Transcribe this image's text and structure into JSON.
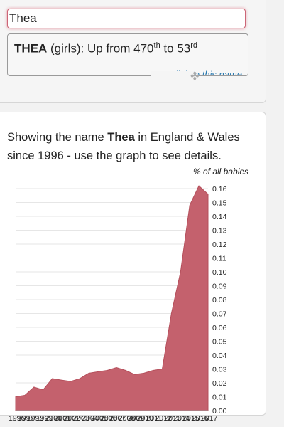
{
  "search": {
    "value": "Thea"
  },
  "result": {
    "name": "THEA",
    "gender": "(girls)",
    "phrase": ": Up from ",
    "from_rank": "470",
    "from_suffix": "th",
    "to_word": " to ",
    "to_rank": "53",
    "to_suffix": "rd",
    "copy_link": "copy link to this name"
  },
  "description": {
    "prefix": "Showing the name ",
    "name": "Thea",
    "suffix": " in England & Wales since 1996 - use the graph to see details."
  },
  "chart_data": {
    "type": "area",
    "ylabel": "% of all babies",
    "x": [
      1996,
      1997,
      1998,
      1999,
      2000,
      2001,
      2002,
      2003,
      2004,
      2005,
      2006,
      2007,
      2008,
      2009,
      2010,
      2011,
      2012,
      2013,
      2014,
      2015,
      2016,
      2017
    ],
    "x_tick_labels": [
      "1996",
      "1997",
      "1998",
      "1999",
      "2000",
      "2001",
      "2002",
      "2003",
      "2004",
      "2005",
      "2006",
      "2007",
      "2008",
      "2009",
      "2010",
      "2011",
      "2012",
      "2013",
      "2014",
      "2015",
      "2016",
      "2017"
    ],
    "values": [
      0.01,
      0.011,
      0.017,
      0.015,
      0.023,
      0.022,
      0.021,
      0.023,
      0.027,
      0.028,
      0.029,
      0.031,
      0.029,
      0.026,
      0.027,
      0.029,
      0.03,
      0.07,
      0.1,
      0.148,
      0.162,
      0.156
    ],
    "ylim": [
      0,
      0.16
    ],
    "y_ticks": [
      "0.00",
      "0.01",
      "0.02",
      "0.03",
      "0.04",
      "0.05",
      "0.06",
      "0.07",
      "0.08",
      "0.09",
      "0.10",
      "0.11",
      "0.12",
      "0.13",
      "0.14",
      "0.15",
      "0.16"
    ],
    "grid": true,
    "color": "#c4616d"
  }
}
